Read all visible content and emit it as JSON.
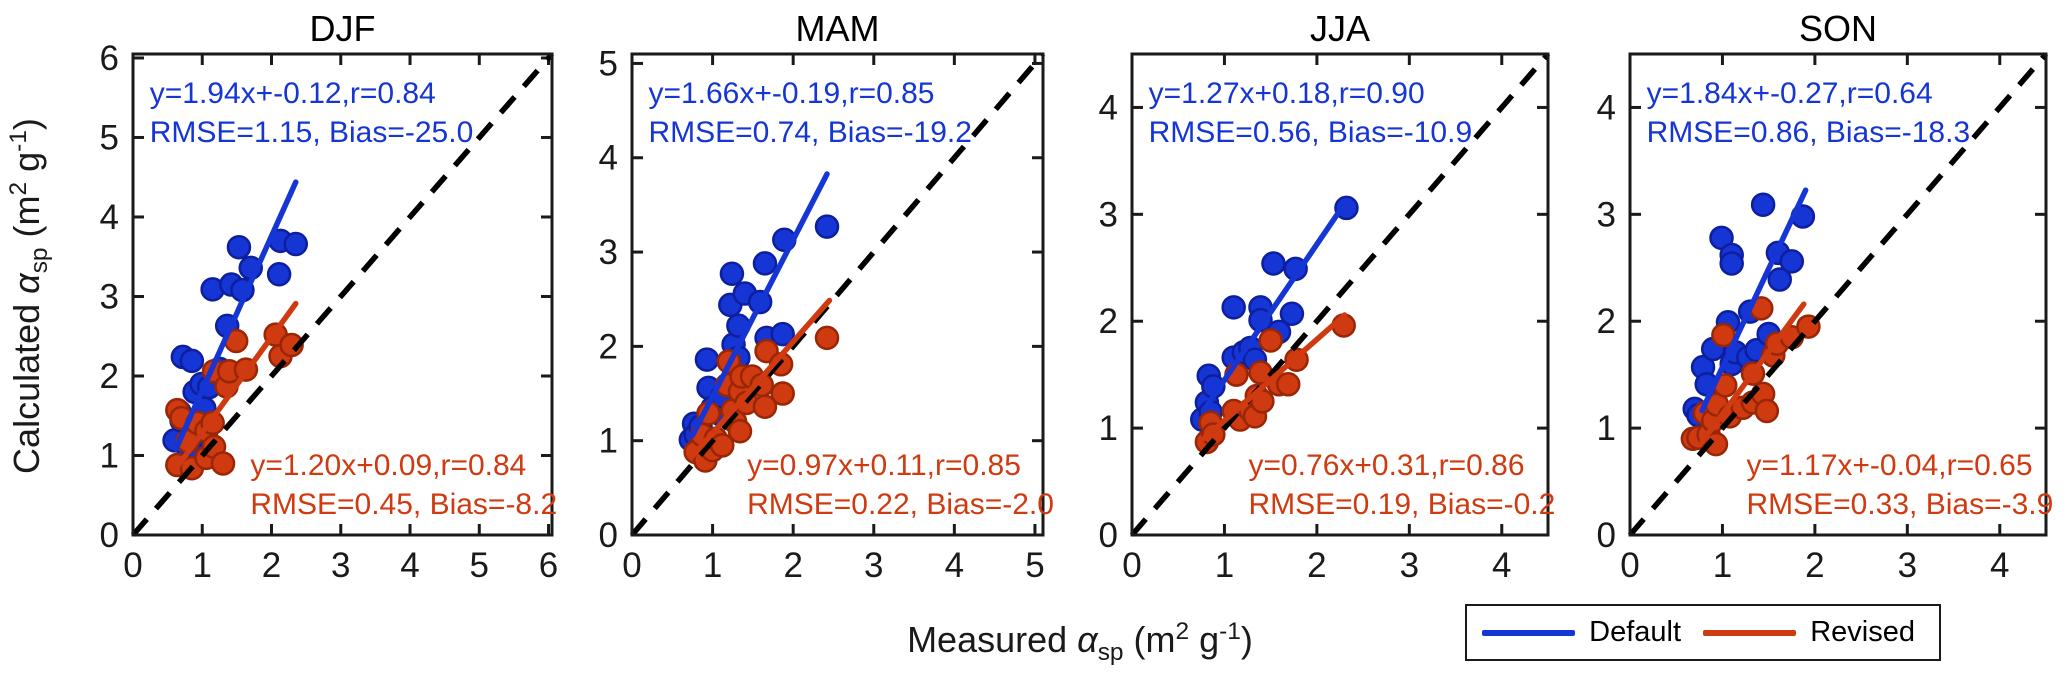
{
  "chart_data": {
    "type": "scatter",
    "xlabel_text": "Measured a_sp (m2 g-1)",
    "ylabel_text": "Calculated a_sp (m2 g-1)",
    "xlabel_parts": [
      {
        "t": "Measured "
      },
      {
        "t": "α",
        "style": "italic"
      },
      {
        "t": "sp",
        "style": "sub"
      },
      {
        "t": " (m"
      },
      {
        "t": "2",
        "style": "sup"
      },
      {
        "t": " g"
      },
      {
        "t": "-1",
        "style": "sup"
      },
      {
        "t": ")"
      }
    ],
    "ylabel_parts": [
      {
        "t": "Calculated "
      },
      {
        "t": "α",
        "style": "italic"
      },
      {
        "t": "sp",
        "style": "sub"
      },
      {
        "t": " (m"
      },
      {
        "t": "2",
        "style": "sup"
      },
      {
        "t": " g"
      },
      {
        "t": "-1",
        "style": "sup"
      },
      {
        "t": ")"
      }
    ],
    "axis_color": "#1a1a1a",
    "identity_line": {
      "style": "dashed",
      "color": "#000000"
    },
    "legend": {
      "position": "below-right",
      "entries": [
        {
          "label": "Default",
          "color": "#1535d4"
        },
        {
          "label": "Revised",
          "color": "#d03a10"
        }
      ]
    },
    "panels": [
      {
        "title": "DJF",
        "xlim": [
          0,
          6.05
        ],
        "ylim": [
          0,
          6.05
        ],
        "xticks": [
          0,
          1,
          2,
          3,
          4,
          5,
          6
        ],
        "yticks": [
          0,
          1,
          2,
          3,
          4,
          5,
          6
        ],
        "series": [
          {
            "name": "Default",
            "color": "#1535d4",
            "edge_color": "#0d1f9e",
            "stats": [
              "y=1.94x+-0.12,r=0.84",
              "RMSE=1.15, Bias=-25.0"
            ],
            "fit": {
              "slope": 1.94,
              "intercept": -0.12,
              "x_range": [
                0.62,
                2.35
              ]
            },
            "points": [
              [
                0.6,
                1.19
              ],
              [
                0.67,
                1.55
              ],
              [
                0.7,
                1.44
              ],
              [
                0.72,
                2.24
              ],
              [
                0.78,
                1.12
              ],
              [
                0.85,
                2.19
              ],
              [
                0.85,
                1.13
              ],
              [
                0.89,
                1.8
              ],
              [
                0.96,
                0.99
              ],
              [
                0.99,
                1.9
              ],
              [
                1.03,
                1.59
              ],
              [
                1.1,
                1.86
              ],
              [
                1.15,
                3.09
              ],
              [
                1.25,
                2.09
              ],
              [
                1.36,
                2.63
              ],
              [
                1.42,
                3.15
              ],
              [
                1.53,
                3.62
              ],
              [
                1.58,
                3.08
              ],
              [
                1.7,
                3.36
              ],
              [
                2.11,
                3.28
              ],
              [
                2.13,
                3.7
              ],
              [
                2.35,
                3.66
              ]
            ]
          },
          {
            "name": "Revised",
            "color": "#d03a10",
            "edge_color": "#992605",
            "stats": [
              "y=1.20x+0.09,r=0.84",
              "RMSE=0.45, Bias=-8.2"
            ],
            "fit": {
              "slope": 1.2,
              "intercept": 0.09,
              "x_range": [
                0.62,
                2.35
              ]
            },
            "points": [
              [
                0.64,
                1.57
              ],
              [
                0.64,
                0.88
              ],
              [
                0.7,
                1.47
              ],
              [
                0.79,
                1.18
              ],
              [
                0.85,
                0.84
              ],
              [
                0.93,
                1.41
              ],
              [
                1.06,
                1.31
              ],
              [
                1.06,
                0.97
              ],
              [
                1.15,
                1.41
              ],
              [
                1.17,
                2.06
              ],
              [
                1.17,
                1.11
              ],
              [
                1.3,
                0.9
              ],
              [
                1.35,
                1.87
              ],
              [
                1.39,
                2.06
              ],
              [
                1.49,
                2.44
              ],
              [
                1.63,
                2.08
              ],
              [
                2.06,
                2.52
              ],
              [
                2.13,
                2.25
              ],
              [
                2.29,
                2.39
              ]
            ]
          }
        ]
      },
      {
        "title": "MAM",
        "xlim": [
          0,
          5.1
        ],
        "ylim": [
          0,
          5.1
        ],
        "xticks": [
          0,
          1,
          2,
          3,
          4,
          5
        ],
        "yticks": [
          0,
          1,
          2,
          3,
          4,
          5
        ],
        "series": [
          {
            "name": "Default",
            "color": "#1535d4",
            "edge_color": "#0d1f9e",
            "stats": [
              "y=1.66x+-0.19,r=0.85",
              "RMSE=0.74, Bias=-19.2"
            ],
            "fit": {
              "slope": 1.66,
              "intercept": -0.19,
              "x_range": [
                0.75,
                2.42
              ]
            },
            "points": [
              [
                0.73,
                1.01
              ],
              [
                0.77,
                1.18
              ],
              [
                0.79,
                1.06
              ],
              [
                0.85,
                1.15
              ],
              [
                0.93,
                1.86
              ],
              [
                0.95,
                1.56
              ],
              [
                1.0,
                1.35
              ],
              [
                1.1,
                1.28
              ],
              [
                1.12,
                1.47
              ],
              [
                1.22,
                2.44
              ],
              [
                1.24,
                2.77
              ],
              [
                1.26,
                2.02
              ],
              [
                1.32,
                2.22
              ],
              [
                1.32,
                1.88
              ],
              [
                1.4,
                2.56
              ],
              [
                1.59,
                2.47
              ],
              [
                1.65,
                2.88
              ],
              [
                1.67,
                2.09
              ],
              [
                1.87,
                2.13
              ],
              [
                1.89,
                3.13
              ],
              [
                2.42,
                3.27
              ]
            ]
          },
          {
            "name": "Revised",
            "color": "#d03a10",
            "edge_color": "#992605",
            "stats": [
              "y=0.97x+0.11,r=0.85",
              "RMSE=0.22, Bias=-2.0"
            ],
            "fit": {
              "slope": 0.97,
              "intercept": 0.11,
              "x_range": [
                0.75,
                2.45
              ]
            },
            "points": [
              [
                0.79,
                0.88
              ],
              [
                0.87,
                1.06
              ],
              [
                0.91,
                0.79
              ],
              [
                0.95,
                1.29
              ],
              [
                1.0,
                0.9
              ],
              [
                1.04,
                1.02
              ],
              [
                1.12,
                0.95
              ],
              [
                1.18,
                1.59
              ],
              [
                1.2,
                1.84
              ],
              [
                1.25,
                1.32
              ],
              [
                1.28,
                1.2
              ],
              [
                1.34,
                1.52
              ],
              [
                1.34,
                1.1
              ],
              [
                1.36,
                1.68
              ],
              [
                1.42,
                1.4
              ],
              [
                1.49,
                1.68
              ],
              [
                1.61,
                1.59
              ],
              [
                1.65,
                1.36
              ],
              [
                1.67,
                1.95
              ],
              [
                1.85,
                1.81
              ],
              [
                1.87,
                1.5
              ],
              [
                2.42,
                2.09
              ]
            ]
          }
        ]
      },
      {
        "title": "JJA",
        "xlim": [
          0,
          4.5
        ],
        "ylim": [
          0,
          4.5
        ],
        "xticks": [
          0,
          1,
          2,
          3,
          4
        ],
        "yticks": [
          0,
          1,
          2,
          3,
          4
        ],
        "series": [
          {
            "name": "Default",
            "color": "#1535d4",
            "edge_color": "#0d1f9e",
            "stats": [
              "y=1.27x+0.18,r=0.90",
              "RMSE=0.56, Bias=-10.9"
            ],
            "fit": {
              "slope": 1.27,
              "intercept": 0.18,
              "x_range": [
                0.78,
                2.3
              ]
            },
            "points": [
              [
                0.76,
                1.08
              ],
              [
                0.81,
                1.24
              ],
              [
                0.83,
                1.49
              ],
              [
                0.85,
                1.15
              ],
              [
                0.88,
                1.39
              ],
              [
                1.1,
                2.13
              ],
              [
                1.1,
                1.66
              ],
              [
                1.21,
                1.71
              ],
              [
                1.28,
                1.75
              ],
              [
                1.33,
                1.64
              ],
              [
                1.39,
                2.13
              ],
              [
                1.39,
                2.01
              ],
              [
                1.53,
                2.54
              ],
              [
                1.59,
                1.9
              ],
              [
                1.73,
                2.07
              ],
              [
                1.77,
                2.49
              ],
              [
                2.32,
                3.06
              ]
            ]
          },
          {
            "name": "Revised",
            "color": "#d03a10",
            "edge_color": "#992605",
            "stats": [
              "y=0.76x+0.31,r=0.86",
              "RMSE=0.19, Bias=-0.2"
            ],
            "fit": {
              "slope": 0.76,
              "intercept": 0.31,
              "x_range": [
                0.78,
                2.3
              ]
            },
            "points": [
              [
                0.81,
                0.87
              ],
              [
                0.85,
                1.05
              ],
              [
                0.88,
                0.94
              ],
              [
                1.1,
                1.16
              ],
              [
                1.13,
                1.5
              ],
              [
                1.17,
                1.08
              ],
              [
                1.28,
                1.17
              ],
              [
                1.33,
                1.11
              ],
              [
                1.35,
                1.3
              ],
              [
                1.39,
                1.52
              ],
              [
                1.41,
                1.25
              ],
              [
                1.5,
                1.82
              ],
              [
                1.59,
                1.41
              ],
              [
                1.69,
                1.41
              ],
              [
                1.78,
                1.64
              ],
              [
                2.29,
                1.96
              ]
            ]
          }
        ]
      },
      {
        "title": "SON",
        "xlim": [
          0,
          4.5
        ],
        "ylim": [
          0,
          4.5
        ],
        "xticks": [
          0,
          1,
          2,
          3,
          4
        ],
        "yticks": [
          0,
          1,
          2,
          3,
          4
        ],
        "series": [
          {
            "name": "Default",
            "color": "#1535d4",
            "edge_color": "#0d1f9e",
            "stats": [
              "y=1.84x+-0.27,r=0.64",
              "RMSE=0.86, Bias=-18.3"
            ],
            "fit": {
              "slope": 1.84,
              "intercept": -0.27,
              "x_range": [
                0.78,
                1.9
              ]
            },
            "points": [
              [
                0.7,
                1.18
              ],
              [
                0.74,
                1.12
              ],
              [
                0.79,
                1.57
              ],
              [
                0.83,
                1.41
              ],
              [
                0.9,
                1.74
              ],
              [
                0.9,
                1.13
              ],
              [
                0.99,
                2.78
              ],
              [
                1.06,
                1.99
              ],
              [
                1.1,
                2.62
              ],
              [
                1.1,
                2.54
              ],
              [
                1.1,
                1.6
              ],
              [
                1.14,
                1.71
              ],
              [
                1.28,
                1.66
              ],
              [
                1.3,
                2.09
              ],
              [
                1.37,
                1.73
              ],
              [
                1.44,
                3.09
              ],
              [
                1.5,
                1.88
              ],
              [
                1.6,
                2.64
              ],
              [
                1.62,
                2.39
              ],
              [
                1.75,
                2.56
              ],
              [
                1.87,
                2.98
              ]
            ]
          },
          {
            "name": "Revised",
            "color": "#d03a10",
            "edge_color": "#992605",
            "stats": [
              "y=1.17x+-0.04,r=0.65",
              "RMSE=0.33, Bias=-3.9"
            ],
            "fit": {
              "slope": 1.17,
              "intercept": -0.04,
              "x_range": [
                0.78,
                1.88
              ]
            },
            "points": [
              [
                0.68,
                0.9
              ],
              [
                0.74,
                0.91
              ],
              [
                0.81,
                1.14
              ],
              [
                0.85,
                0.94
              ],
              [
                0.9,
                1.07
              ],
              [
                0.93,
                0.85
              ],
              [
                0.94,
                1.22
              ],
              [
                1.01,
                1.87
              ],
              [
                1.03,
                1.4
              ],
              [
                1.08,
                1.11
              ],
              [
                1.22,
                1.19
              ],
              [
                1.33,
                1.51
              ],
              [
                1.33,
                1.24
              ],
              [
                1.42,
                2.12
              ],
              [
                1.44,
                1.32
              ],
              [
                1.48,
                1.16
              ],
              [
                1.55,
                1.68
              ],
              [
                1.59,
                1.79
              ],
              [
                1.75,
                1.85
              ],
              [
                1.93,
                1.95
              ]
            ]
          }
        ]
      }
    ]
  }
}
